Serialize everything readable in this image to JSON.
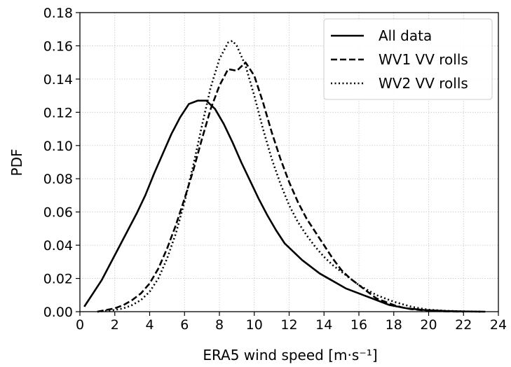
{
  "chart_data": {
    "type": "line",
    "xlabel": "ERA5 wind speed [m·s⁻¹]",
    "ylabel": "PDF",
    "xlim": [
      0,
      24
    ],
    "ylim": [
      0,
      0.18
    ],
    "x_ticks": [
      "0",
      "2",
      "4",
      "6",
      "8",
      "10",
      "12",
      "14",
      "16",
      "18",
      "20",
      "22",
      "24"
    ],
    "y_ticks": [
      "0.00",
      "0.02",
      "0.04",
      "0.06",
      "0.08",
      "0.10",
      "0.12",
      "0.14",
      "0.16",
      "0.18"
    ],
    "grid": true,
    "legend_position": "top-right",
    "series": [
      {
        "name": "All data",
        "style": "solid",
        "color": "#000000",
        "points": [
          [
            0.25,
            0.003
          ],
          [
            0.75,
            0.011
          ],
          [
            1.25,
            0.019
          ],
          [
            1.75,
            0.029
          ],
          [
            2.25,
            0.039
          ],
          [
            2.75,
            0.049
          ],
          [
            3.25,
            0.059
          ],
          [
            3.75,
            0.07
          ],
          [
            4.25,
            0.083
          ],
          [
            4.75,
            0.095
          ],
          [
            5.25,
            0.107
          ],
          [
            5.75,
            0.117
          ],
          [
            6.25,
            0.125
          ],
          [
            6.75,
            0.127
          ],
          [
            7.25,
            0.127
          ],
          [
            7.75,
            0.122
          ],
          [
            8.25,
            0.113
          ],
          [
            8.75,
            0.102
          ],
          [
            9.25,
            0.09
          ],
          [
            9.75,
            0.079
          ],
          [
            10.25,
            0.068
          ],
          [
            10.75,
            0.058
          ],
          [
            11.25,
            0.049
          ],
          [
            11.75,
            0.041
          ],
          [
            12.25,
            0.036
          ],
          [
            12.75,
            0.031
          ],
          [
            13.25,
            0.027
          ],
          [
            13.75,
            0.023
          ],
          [
            14.25,
            0.02
          ],
          [
            14.75,
            0.017
          ],
          [
            15.25,
            0.014
          ],
          [
            15.75,
            0.012
          ],
          [
            16.25,
            0.01
          ],
          [
            16.75,
            0.008
          ],
          [
            17.25,
            0.006
          ],
          [
            17.75,
            0.004
          ],
          [
            18.25,
            0.003
          ],
          [
            18.75,
            0.002
          ],
          [
            19.25,
            0.0015
          ],
          [
            19.75,
            0.001
          ],
          [
            20.25,
            0.0007
          ],
          [
            20.75,
            0.0005
          ],
          [
            21.25,
            0.0003
          ],
          [
            21.75,
            0.0002
          ],
          [
            22.25,
            0.0001
          ],
          [
            22.75,
            5e-05
          ],
          [
            23.25,
            0.0
          ]
        ]
      },
      {
        "name": "WV1 VV rolls",
        "style": "dashed",
        "color": "#000000",
        "points": [
          [
            1.0,
            0.0
          ],
          [
            1.5,
            0.001
          ],
          [
            2.0,
            0.002
          ],
          [
            2.5,
            0.004
          ],
          [
            3.0,
            0.007
          ],
          [
            3.5,
            0.011
          ],
          [
            4.0,
            0.017
          ],
          [
            4.5,
            0.026
          ],
          [
            5.0,
            0.038
          ],
          [
            5.5,
            0.052
          ],
          [
            6.0,
            0.068
          ],
          [
            6.5,
            0.085
          ],
          [
            7.0,
            0.104
          ],
          [
            7.5,
            0.122
          ],
          [
            8.0,
            0.136
          ],
          [
            8.5,
            0.146
          ],
          [
            9.0,
            0.145
          ],
          [
            9.5,
            0.15
          ],
          [
            10.0,
            0.142
          ],
          [
            10.5,
            0.126
          ],
          [
            11.0,
            0.108
          ],
          [
            11.5,
            0.092
          ],
          [
            12.0,
            0.078
          ],
          [
            12.5,
            0.066
          ],
          [
            13.0,
            0.056
          ],
          [
            13.5,
            0.048
          ],
          [
            14.0,
            0.04
          ],
          [
            14.5,
            0.032
          ],
          [
            15.0,
            0.025
          ],
          [
            15.5,
            0.02
          ],
          [
            16.0,
            0.016
          ],
          [
            16.5,
            0.012
          ],
          [
            17.0,
            0.008
          ],
          [
            17.5,
            0.006
          ],
          [
            18.0,
            0.004
          ],
          [
            18.5,
            0.0025
          ],
          [
            19.0,
            0.0015
          ],
          [
            19.5,
            0.001
          ],
          [
            20.0,
            0.0005
          ],
          [
            21.0,
            0.0002
          ],
          [
            22.0,
            0.0
          ]
        ]
      },
      {
        "name": "WV2 VV rolls",
        "style": "dotted",
        "color": "#000000",
        "points": [
          [
            1.0,
            0.0
          ],
          [
            1.5,
            0.0005
          ],
          [
            2.0,
            0.001
          ],
          [
            2.5,
            0.002
          ],
          [
            3.0,
            0.004
          ],
          [
            3.5,
            0.007
          ],
          [
            4.0,
            0.012
          ],
          [
            4.5,
            0.02
          ],
          [
            5.0,
            0.032
          ],
          [
            5.5,
            0.047
          ],
          [
            6.0,
            0.066
          ],
          [
            6.5,
            0.088
          ],
          [
            7.0,
            0.112
          ],
          [
            7.5,
            0.135
          ],
          [
            8.0,
            0.152
          ],
          [
            8.5,
            0.162
          ],
          [
            8.75,
            0.163
          ],
          [
            9.0,
            0.16
          ],
          [
            9.5,
            0.148
          ],
          [
            10.0,
            0.13
          ],
          [
            10.5,
            0.11
          ],
          [
            11.0,
            0.092
          ],
          [
            11.5,
            0.077
          ],
          [
            12.0,
            0.064
          ],
          [
            12.5,
            0.054
          ],
          [
            13.0,
            0.046
          ],
          [
            13.5,
            0.039
          ],
          [
            14.0,
            0.033
          ],
          [
            14.5,
            0.028
          ],
          [
            15.0,
            0.024
          ],
          [
            15.5,
            0.02
          ],
          [
            16.0,
            0.016
          ],
          [
            16.5,
            0.013
          ],
          [
            17.0,
            0.01
          ],
          [
            17.5,
            0.008
          ],
          [
            18.0,
            0.006
          ],
          [
            18.5,
            0.0045
          ],
          [
            19.0,
            0.003
          ],
          [
            19.5,
            0.002
          ],
          [
            20.0,
            0.0012
          ],
          [
            21.0,
            0.0005
          ],
          [
            22.0,
            0.0002
          ],
          [
            23.0,
            0.0
          ]
        ]
      }
    ]
  }
}
